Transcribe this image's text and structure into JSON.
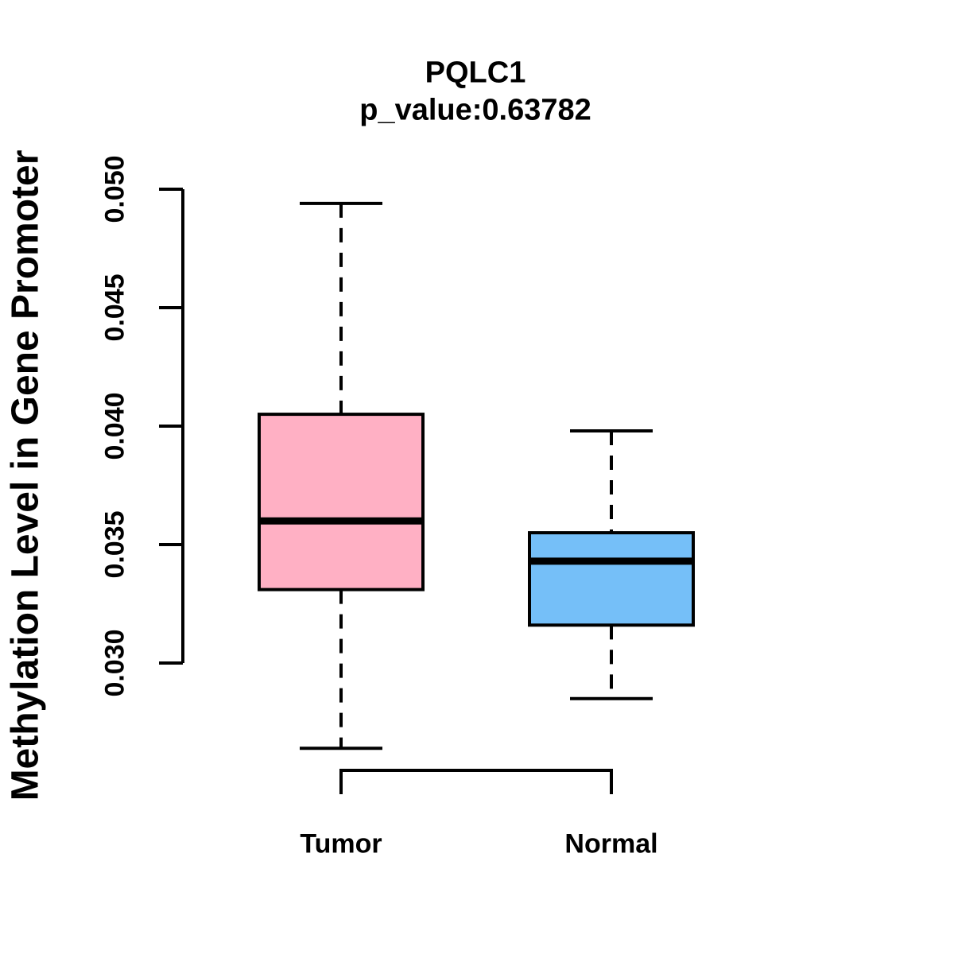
{
  "chart_data": {
    "type": "boxplot",
    "title": "PQLC1",
    "subtitle": "p_value:0.63782",
    "ylabel": "Methylation Level in Gene Promoter",
    "xlabel": "",
    "categories": [
      "Tumor",
      "Normal"
    ],
    "ylim": [
      0.03,
      0.05
    ],
    "yticks": [
      0.03,
      0.035,
      0.04,
      0.045,
      0.05
    ],
    "ytick_labels": [
      "0.030",
      "0.035",
      "0.040",
      "0.045",
      "0.050"
    ],
    "grid": false,
    "legend": "none",
    "series": [
      {
        "name": "Tumor",
        "color": "#FFB0C4",
        "whisker_low": 0.0264,
        "q1": 0.0331,
        "median": 0.036,
        "q3": 0.0405,
        "whisker_high": 0.0494
      },
      {
        "name": "Normal",
        "color": "#75BFF8",
        "whisker_low": 0.0285,
        "q1": 0.0316,
        "median": 0.0343,
        "q3": 0.0355,
        "whisker_high": 0.0398
      }
    ],
    "stroke_color": "#000000",
    "background_color": "#FFFFFF"
  }
}
